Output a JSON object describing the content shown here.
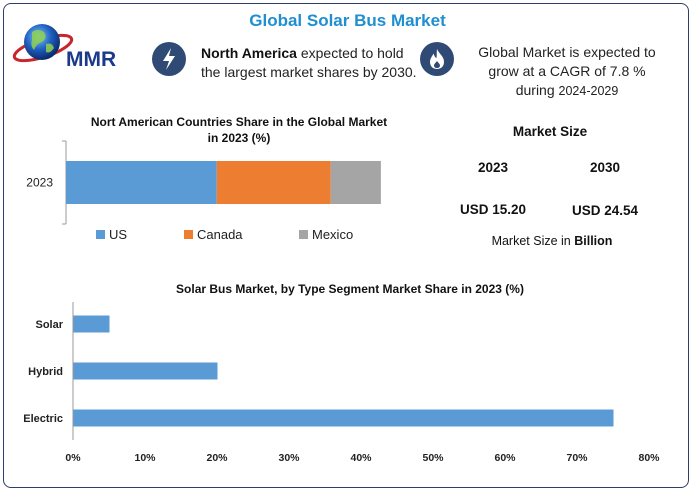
{
  "title": "Global Solar Bus Market",
  "logo": {
    "text": "MMR"
  },
  "colors": {
    "title": "#1f8fd0",
    "icon_bg": "#2f4a74",
    "bar_blue": "#5b9bd5",
    "bar_orange": "#ed7d31",
    "bar_gray": "#a5a5a5"
  },
  "info1": {
    "icon": "bolt-icon",
    "region": "North America",
    "text_line1_rest": " expected to hold",
    "text_line2": "the largest market shares by 2030."
  },
  "info2": {
    "icon": "flame-icon",
    "line1": "Global Market is expected to",
    "line2": "grow at a CAGR of 7.8 %",
    "line3_prefix": "during ",
    "line3_period": "2024-2029"
  },
  "market_size": {
    "title": "Market Size",
    "year1": "2023",
    "year2": "2030",
    "value1": "USD 15.20",
    "value2": "USD 24.54",
    "unit_prefix": "Market Size in ",
    "unit_bold": "Billion"
  },
  "chart_data": [
    {
      "type": "bar",
      "orientation": "horizontal",
      "stacked": true,
      "title": "Nort American Countries Share in the Global Market in 2023 (%)",
      "title_line1": "Nort American Countries Share in the Global Market",
      "title_line2": "in 2023 (%)",
      "categories": [
        "2023"
      ],
      "series": [
        {
          "name": "US",
          "values": [
            45
          ],
          "color": "#5b9bd5"
        },
        {
          "name": "Canada",
          "values": [
            34
          ],
          "color": "#ed7d31"
        },
        {
          "name": "Mexico",
          "values": [
            15
          ],
          "color": "#a5a5a5"
        }
      ],
      "xlim": [
        0,
        100
      ],
      "grid": false,
      "legend": "bottom"
    },
    {
      "type": "bar",
      "orientation": "horizontal",
      "title": "Solar Bus Market, by Type Segment Market Share in 2023 (%)",
      "categories": [
        "Solar",
        "Hybrid",
        "Electric"
      ],
      "values": [
        5,
        20,
        75
      ],
      "color": "#5b9bd5",
      "xlim": [
        0,
        80
      ],
      "xticks": [
        "0%",
        "10%",
        "20%",
        "30%",
        "40%",
        "50%",
        "60%",
        "70%",
        "80%"
      ],
      "grid": false
    }
  ]
}
